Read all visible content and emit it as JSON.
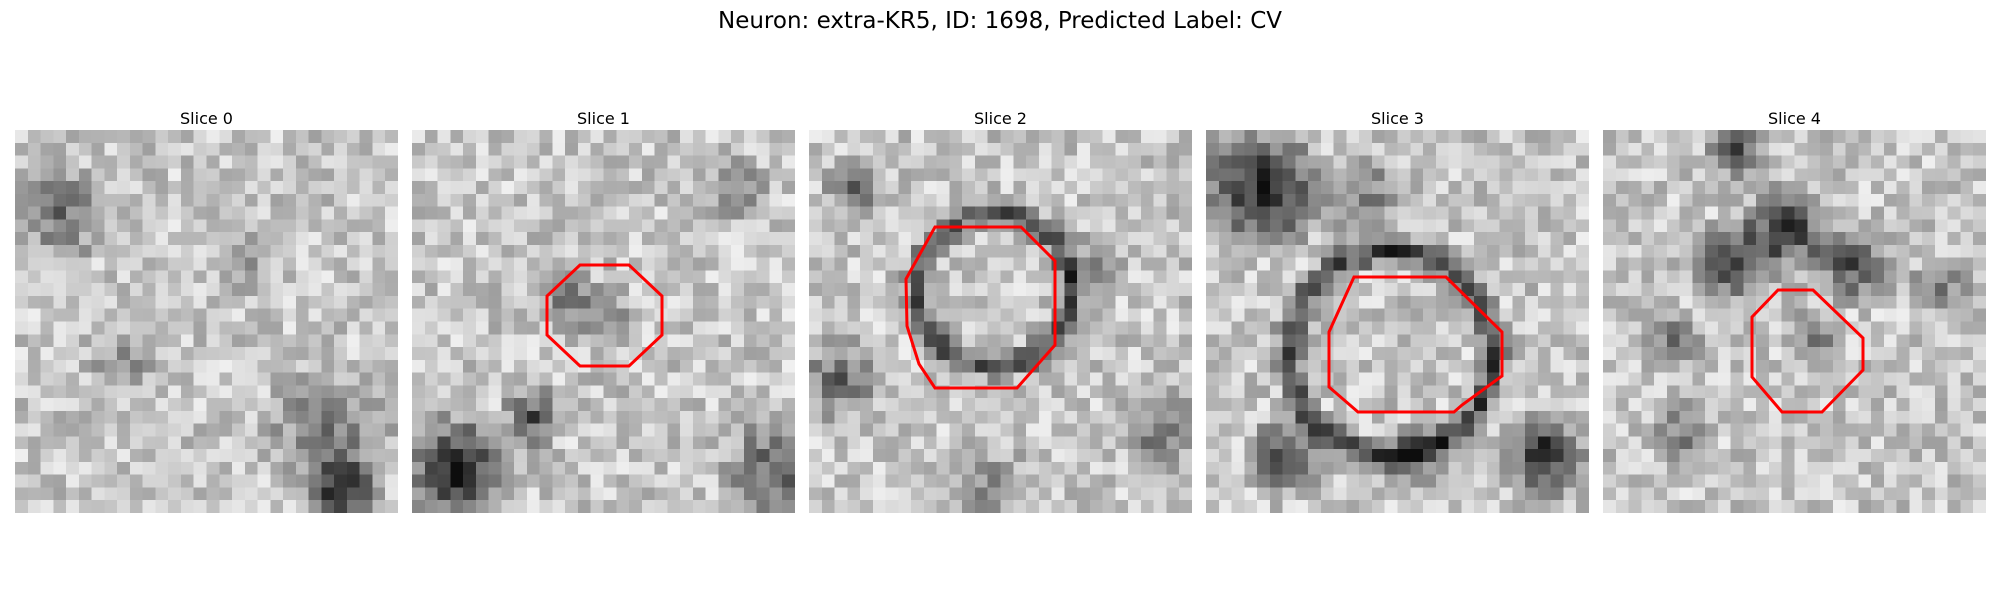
{
  "figure": {
    "title": "Neuron: extra-KR5, ID: 1698, Predicted Label: CV"
  },
  "panels": [
    {
      "title": "Slice 0",
      "contour_color": "#ff0000",
      "has_contour": false
    },
    {
      "title": "Slice 1",
      "contour_color": "#ff0000",
      "has_contour": true
    },
    {
      "title": "Slice 2",
      "contour_color": "#ff0000",
      "has_contour": true
    },
    {
      "title": "Slice 3",
      "contour_color": "#ff0000",
      "has_contour": true
    },
    {
      "title": "Slice 4",
      "contour_color": "#ff0000",
      "has_contour": true
    }
  ]
}
